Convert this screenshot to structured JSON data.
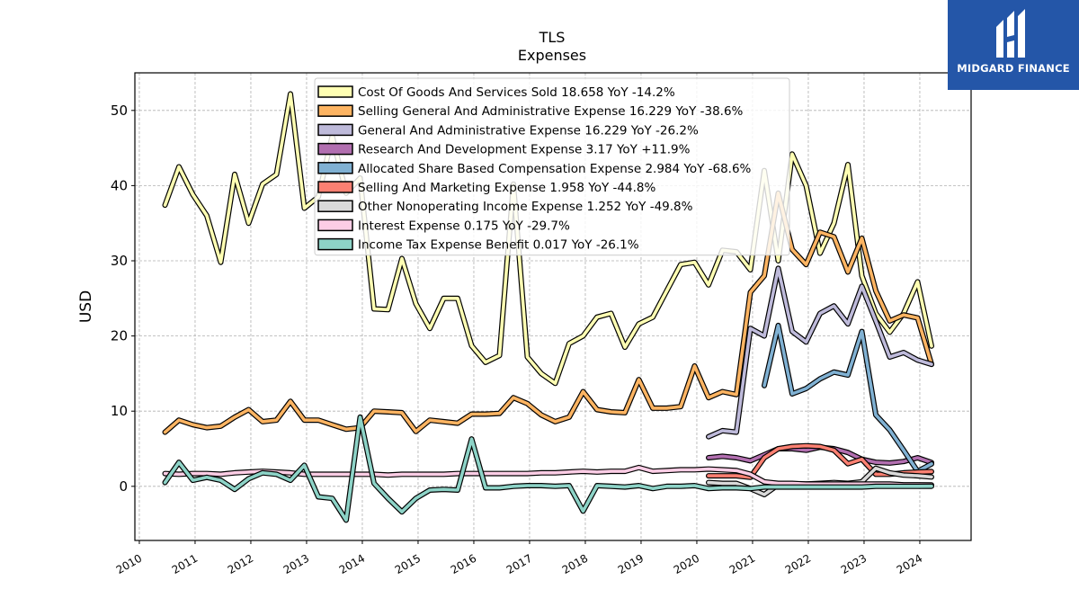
{
  "brand": {
    "name": "MIDGARD FINANCE",
    "bg_color": "#2456a8"
  },
  "chart_data": {
    "type": "line",
    "title": "TLS",
    "subtitle": "Expenses",
    "ylabel": "USD",
    "xlabel": "",
    "xlim": [
      2009.92,
      2024.92
    ],
    "ylim": [
      -7.2,
      55
    ],
    "xticks": [
      2010,
      2011,
      2012,
      2013,
      2014,
      2015,
      2016,
      2017,
      2018,
      2019,
      2020,
      2021,
      2022,
      2023,
      2024
    ],
    "yticks": [
      0,
      10,
      20,
      30,
      40,
      50
    ],
    "grid": true,
    "legend_position": "top-center",
    "series": [
      {
        "name": "Cost Of Goods And Services Sold",
        "legend": "Cost Of Goods And Services Sold  18.658 YoY -14.2%",
        "color": "#ffffb3",
        "x": [
          2010.46,
          2010.71,
          2010.96,
          2011.21,
          2011.46,
          2011.71,
          2011.96,
          2012.21,
          2012.46,
          2012.71,
          2012.96,
          2013.21,
          2013.46,
          2013.71,
          2013.96,
          2014.21,
          2014.46,
          2014.71,
          2014.96,
          2015.21,
          2015.46,
          2015.71,
          2015.96,
          2016.21,
          2016.46,
          2016.71,
          2016.96,
          2017.21,
          2017.46,
          2017.71,
          2017.96,
          2018.21,
          2018.46,
          2018.71,
          2018.96,
          2019.21,
          2019.46,
          2019.71,
          2019.96,
          2020.21,
          2020.46,
          2020.71,
          2020.96,
          2021.21,
          2021.46,
          2021.71,
          2021.96,
          2022.21,
          2022.46,
          2022.71,
          2022.96,
          2023.21,
          2023.46,
          2023.71,
          2023.96,
          2024.21
        ],
        "y": [
          37.4,
          42.5,
          38.8,
          36.0,
          29.8,
          41.5,
          35.0,
          40.2,
          41.5,
          52.2,
          37.0,
          38.5,
          46.6,
          39.0,
          41.0,
          23.6,
          23.5,
          30.3,
          24.3,
          21.0,
          25.0,
          25.0,
          18.7,
          16.5,
          17.4,
          40.2,
          17.2,
          15.0,
          13.7,
          19.0,
          20.0,
          22.5,
          23.0,
          18.5,
          21.6,
          22.5,
          26.0,
          29.5,
          29.8,
          26.8,
          31.4,
          31.2,
          28.8,
          42.0,
          30.0,
          44.2,
          40.0,
          31.0,
          35.0,
          42.8,
          28.0,
          23.0,
          20.5,
          23.0,
          27.2,
          18.66
        ]
      },
      {
        "name": "Selling General And Administrative Expense",
        "legend": "Selling General And Administrative Expense  16.229 YoY -38.6%",
        "color": "#fdb462",
        "x": [
          2010.46,
          2010.71,
          2010.96,
          2011.21,
          2011.46,
          2011.71,
          2011.96,
          2012.21,
          2012.46,
          2012.71,
          2012.96,
          2013.21,
          2013.46,
          2013.71,
          2013.96,
          2014.21,
          2014.46,
          2014.71,
          2014.96,
          2015.21,
          2015.46,
          2015.71,
          2015.96,
          2016.21,
          2016.46,
          2016.71,
          2016.96,
          2017.21,
          2017.46,
          2017.71,
          2017.96,
          2018.21,
          2018.46,
          2018.71,
          2018.96,
          2019.21,
          2019.46,
          2019.71,
          2019.96,
          2020.21,
          2020.46,
          2020.71,
          2020.96,
          2021.21,
          2021.46,
          2021.71,
          2021.96,
          2022.21,
          2022.46,
          2022.71,
          2022.96,
          2023.21,
          2023.46,
          2023.71,
          2023.96,
          2024.21
        ],
        "y": [
          7.2,
          8.8,
          8.2,
          7.8,
          8.0,
          9.2,
          10.2,
          8.6,
          8.8,
          11.3,
          8.8,
          8.8,
          8.2,
          7.6,
          7.8,
          10.0,
          9.9,
          9.8,
          7.3,
          8.8,
          8.6,
          8.4,
          9.6,
          9.6,
          9.7,
          11.8,
          11.0,
          9.5,
          8.6,
          9.2,
          12.6,
          10.2,
          9.9,
          9.8,
          14.2,
          10.4,
          10.4,
          10.6,
          16.0,
          11.8,
          12.6,
          12.2,
          25.8,
          28.0,
          39.0,
          31.5,
          29.5,
          33.8,
          33.2,
          28.5,
          33.0,
          26.0,
          22.0,
          22.8,
          22.4,
          16.23
        ]
      },
      {
        "name": "General And Administrative Expense",
        "legend": "General And Administrative Expense  16.229 YoY -26.2%",
        "color": "#bebada",
        "x": [
          2020.21,
          2020.46,
          2020.71,
          2020.96,
          2021.21,
          2021.46,
          2021.71,
          2021.96,
          2022.21,
          2022.46,
          2022.71,
          2022.96,
          2023.21,
          2023.46,
          2023.71,
          2023.96,
          2024.21
        ],
        "y": [
          6.6,
          7.4,
          7.2,
          21.0,
          20.0,
          29.0,
          20.6,
          19.2,
          23.0,
          24.0,
          21.6,
          26.6,
          22.0,
          17.2,
          17.8,
          16.8,
          16.23
        ]
      },
      {
        "name": "Research And Development Expense",
        "legend": "Research And Development Expense  3.17 YoY +11.9%",
        "color": "#b26fb0",
        "x": [
          2020.21,
          2020.46,
          2020.71,
          2020.96,
          2021.21,
          2021.46,
          2021.71,
          2021.96,
          2022.21,
          2022.46,
          2022.71,
          2022.96,
          2023.21,
          2023.46,
          2023.71,
          2023.96,
          2024.21
        ],
        "y": [
          3.8,
          4.0,
          3.8,
          3.4,
          4.2,
          5.0,
          5.0,
          4.8,
          5.2,
          5.0,
          4.5,
          3.6,
          3.2,
          3.1,
          3.3,
          3.8,
          3.17
        ]
      },
      {
        "name": "Allocated Share Based Compensation Expense",
        "legend": "Allocated Share Based Compensation Expense  2.984 YoY -68.6%",
        "color": "#80b1d3",
        "x": [
          2021.21,
          2021.46,
          2021.71,
          2021.96,
          2022.21,
          2022.46,
          2022.71,
          2022.96,
          2023.21,
          2023.46,
          2023.71,
          2023.96,
          2024.21
        ],
        "y": [
          13.4,
          21.4,
          12.3,
          13.0,
          14.3,
          15.2,
          14.8,
          20.6,
          9.5,
          7.5,
          4.8,
          2.0,
          2.98
        ]
      },
      {
        "name": "Selling And Marketing Expense",
        "legend": "Selling And Marketing Expense  1.958 YoY -44.8%",
        "color": "#fb8072",
        "x": [
          2020.21,
          2020.46,
          2020.71,
          2020.96,
          2021.21,
          2021.46,
          2021.71,
          2021.96,
          2022.21,
          2022.46,
          2022.71,
          2022.96,
          2023.21,
          2023.46,
          2023.71,
          2023.96,
          2024.21
        ],
        "y": [
          1.4,
          1.4,
          1.4,
          1.2,
          3.8,
          5.0,
          5.3,
          5.4,
          5.3,
          4.8,
          3.0,
          3.6,
          1.6,
          1.6,
          1.8,
          1.9,
          1.96
        ]
      },
      {
        "name": "Other Nonoperating Income Expense",
        "legend": "Other Nonoperating Income Expense  1.252 YoY -49.8%",
        "color": "#d9d9d9",
        "x": [
          2020.21,
          2020.46,
          2020.71,
          2020.96,
          2021.21,
          2021.46,
          2021.71,
          2021.96,
          2022.21,
          2022.46,
          2022.71,
          2022.96,
          2023.21,
          2023.46,
          2023.71,
          2023.96,
          2024.21
        ],
        "y": [
          0.5,
          0.4,
          0.4,
          -0.3,
          -1.1,
          0.2,
          0.3,
          0.3,
          0.4,
          0.5,
          0.4,
          0.6,
          2.4,
          1.8,
          1.5,
          1.4,
          1.25
        ]
      },
      {
        "name": "Interest Expense",
        "legend": "Interest Expense  0.175 YoY -29.7%",
        "color": "#fccde5",
        "x": [
          2010.46,
          2010.71,
          2010.96,
          2011.21,
          2011.46,
          2011.71,
          2011.96,
          2012.21,
          2012.46,
          2012.71,
          2012.96,
          2013.21,
          2013.46,
          2013.71,
          2013.96,
          2014.21,
          2014.46,
          2014.71,
          2014.96,
          2015.21,
          2015.46,
          2015.71,
          2015.96,
          2016.21,
          2016.46,
          2016.71,
          2016.96,
          2017.21,
          2017.46,
          2017.71,
          2017.96,
          2018.21,
          2018.46,
          2018.71,
          2018.96,
          2019.21,
          2019.46,
          2019.71,
          2019.96,
          2020.21,
          2020.46,
          2020.71,
          2020.96,
          2021.21,
          2021.46,
          2021.71,
          2021.96,
          2022.21,
          2022.46,
          2022.71,
          2022.96,
          2023.21,
          2023.46,
          2023.71,
          2023.96,
          2024.21
        ],
        "y": [
          1.7,
          1.6,
          1.7,
          1.7,
          1.6,
          1.8,
          1.9,
          2.0,
          1.9,
          1.8,
          1.6,
          1.6,
          1.6,
          1.6,
          1.6,
          1.6,
          1.5,
          1.6,
          1.6,
          1.6,
          1.6,
          1.7,
          1.7,
          1.7,
          1.7,
          1.7,
          1.7,
          1.8,
          1.8,
          1.9,
          2.0,
          1.9,
          2.0,
          2.0,
          2.5,
          2.0,
          2.1,
          2.2,
          2.2,
          2.3,
          2.2,
          2.1,
          1.6,
          0.6,
          0.4,
          0.4,
          0.3,
          0.3,
          0.3,
          0.3,
          0.3,
          0.3,
          0.3,
          0.2,
          0.2,
          0.175
        ]
      },
      {
        "name": "Income Tax Expense Benefit",
        "legend": "Income Tax Expense Benefit  0.017 YoY -26.1%",
        "color": "#8dd3c7",
        "x": [
          2010.46,
          2010.71,
          2010.96,
          2011.21,
          2011.46,
          2011.71,
          2011.96,
          2012.21,
          2012.46,
          2012.71,
          2012.96,
          2013.21,
          2013.46,
          2013.71,
          2013.96,
          2014.21,
          2014.46,
          2014.71,
          2014.96,
          2015.21,
          2015.46,
          2015.71,
          2015.96,
          2016.21,
          2016.46,
          2016.71,
          2016.96,
          2017.21,
          2017.46,
          2017.71,
          2017.96,
          2018.21,
          2018.46,
          2018.71,
          2018.96,
          2019.21,
          2019.46,
          2019.71,
          2019.96,
          2020.21,
          2020.46,
          2020.71,
          2020.96,
          2021.21,
          2021.46,
          2021.71,
          2021.96,
          2022.21,
          2022.46,
          2022.71,
          2022.96,
          2023.21,
          2023.46,
          2023.71,
          2023.96,
          2024.21
        ],
        "y": [
          0.5,
          3.2,
          0.8,
          1.2,
          0.8,
          -0.4,
          1.0,
          1.8,
          1.6,
          0.8,
          2.8,
          -1.4,
          -1.6,
          -4.5,
          9.2,
          0.4,
          -1.6,
          -3.4,
          -1.6,
          -0.5,
          -0.4,
          -0.5,
          6.3,
          -0.2,
          -0.2,
          0.0,
          0.1,
          0.1,
          0.0,
          0.1,
          -3.3,
          0.1,
          0.0,
          -0.1,
          0.1,
          -0.3,
          0.0,
          0.0,
          0.1,
          -0.3,
          -0.2,
          -0.2,
          -0.3,
          -0.1,
          -0.1,
          -0.1,
          -0.1,
          -0.1,
          -0.1,
          -0.1,
          -0.1,
          0.0,
          0.0,
          0.0,
          0.0,
          0.017
        ]
      }
    ]
  }
}
